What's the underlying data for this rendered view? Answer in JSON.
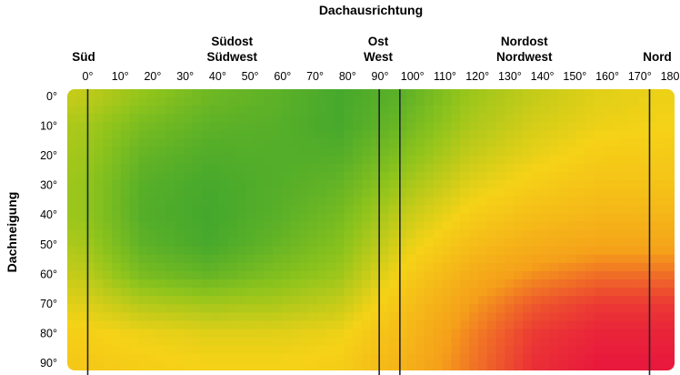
{
  "chart_data": {
    "type": "heatmap",
    "title": "",
    "xlabel": "Dachausrichtung",
    "ylabel": "Dachneigung",
    "x_ticks": [
      "0°",
      "10°",
      "20°",
      "30°",
      "40°",
      "50°",
      "60°",
      "70°",
      "80°",
      "90°",
      "100°",
      "110°",
      "120°",
      "130°",
      "140°",
      "150°",
      "160°",
      "170°",
      "180°"
    ],
    "y_ticks": [
      "0°",
      "10°",
      "20°",
      "30°",
      "40°",
      "50°",
      "60°",
      "70°",
      "80°",
      "90°"
    ],
    "xlim": [
      -3.5,
      183.5
    ],
    "ylim": [
      0,
      90
    ],
    "direction_labels": [
      {
        "lines": [
          "Süd"
        ],
        "at": 0
      },
      {
        "lines": [
          "Südost",
          "Südwest"
        ],
        "at": 45
      },
      {
        "lines": [
          "Ost",
          "West"
        ],
        "at": 90
      },
      {
        "lines": [
          "Nordost",
          "Nordwest"
        ],
        "at": 135
      },
      {
        "lines": [
          "Nord"
        ],
        "at": 180
      }
    ],
    "divider_lines": [
      0,
      85,
      95,
      180
    ],
    "color_scale": [
      "#e8193c",
      "#f5a01a",
      "#f5d217",
      "#8fc41c",
      "#3da52e"
    ],
    "grid": false,
    "legend": "none",
    "x": [
      0,
      20,
      40,
      60,
      80,
      100,
      120,
      140,
      160,
      180
    ],
    "y": [
      0,
      10,
      20,
      30,
      40,
      50,
      60,
      70,
      80,
      90
    ],
    "values": [
      [
        0.62,
        0.74,
        0.85,
        0.9,
        0.97,
        0.9,
        0.72,
        0.62,
        0.55,
        0.52
      ],
      [
        0.68,
        0.82,
        0.9,
        0.92,
        0.97,
        0.85,
        0.68,
        0.58,
        0.52,
        0.5
      ],
      [
        0.7,
        0.88,
        0.94,
        0.93,
        0.93,
        0.78,
        0.62,
        0.53,
        0.47,
        0.46
      ],
      [
        0.72,
        0.92,
        0.97,
        0.93,
        0.88,
        0.7,
        0.55,
        0.47,
        0.42,
        0.42
      ],
      [
        0.72,
        0.93,
        0.98,
        0.92,
        0.83,
        0.62,
        0.48,
        0.4,
        0.36,
        0.36
      ],
      [
        0.68,
        0.9,
        0.97,
        0.88,
        0.78,
        0.55,
        0.4,
        0.32,
        0.28,
        0.28
      ],
      [
        0.62,
        0.82,
        0.88,
        0.8,
        0.72,
        0.48,
        0.32,
        0.22,
        0.16,
        0.16
      ],
      [
        0.55,
        0.66,
        0.7,
        0.68,
        0.62,
        0.42,
        0.25,
        0.12,
        0.06,
        0.06
      ],
      [
        0.48,
        0.52,
        0.55,
        0.55,
        0.52,
        0.38,
        0.2,
        0.06,
        0.02,
        0.02
      ],
      [
        0.45,
        0.48,
        0.5,
        0.5,
        0.48,
        0.34,
        0.18,
        0.04,
        0.0,
        0.0
      ]
    ]
  }
}
